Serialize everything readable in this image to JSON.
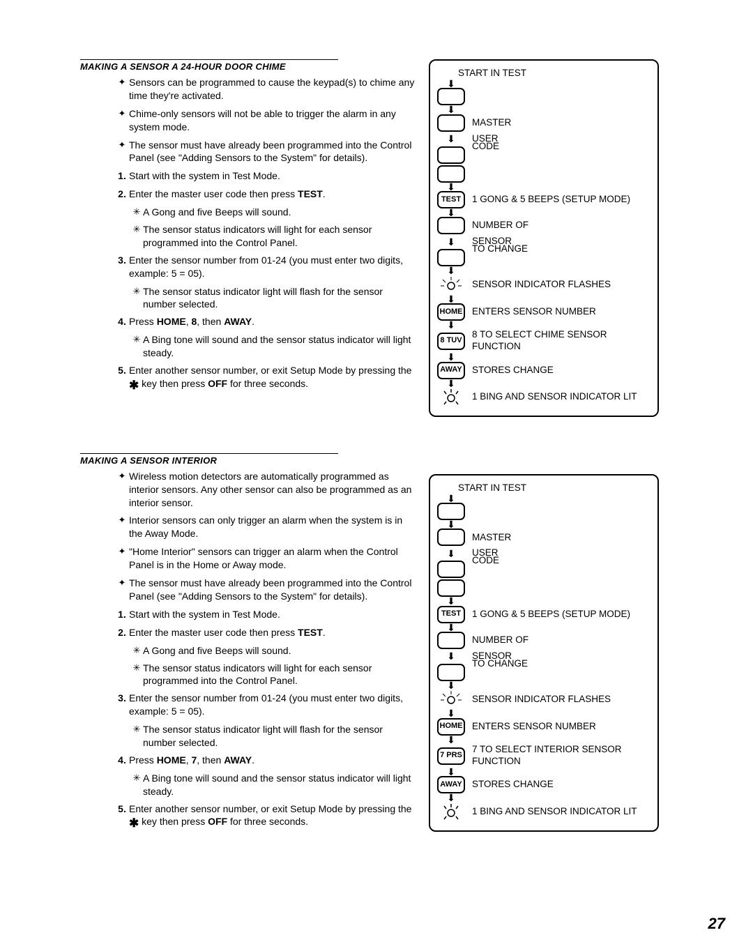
{
  "page_number": "27",
  "sections": [
    {
      "heading": "MAKING A SENSOR A 24-HOUR DOOR CHIME",
      "bullets": [
        "Sensors can be programmed to cause the keypad(s) to chime any time they're activated.",
        "Chime-only sensors will not be able to trigger the alarm in any system mode.",
        "The sensor must have already been programmed into the Control Panel (see \"Adding Sensors to the System\" for details)."
      ],
      "steps": [
        {
          "n": "1.",
          "text": "Start with the system in Test Mode."
        },
        {
          "n": "2.",
          "text_parts": [
            "Enter the master user code then press ",
            "TEST",
            "."
          ],
          "subs": [
            "A Gong and ﬁve Beeps will sound.",
            "The sensor status indicators will light for each sensor programmed into the Control Panel."
          ]
        },
        {
          "n": "3.",
          "text": "Enter the sensor number from 01-24 (you must enter two digits, example: 5 = 05).",
          "subs": [
            "The sensor status indicator light will ﬂash for the sensor number selected."
          ]
        },
        {
          "n": "4.",
          "text_parts": [
            "Press ",
            "HOME",
            ", ",
            "8",
            ", then ",
            "AWAY",
            "."
          ],
          "subs": [
            "A Bing tone will sound and the sensor status indicator will light steady."
          ]
        },
        {
          "n": "5.",
          "text_parts_mixed": [
            "Enter another sensor number, or exit Setup Mode by pressing the ",
            "STAR",
            " key then press ",
            "OFF",
            " for three seconds."
          ]
        }
      ],
      "flow": {
        "title": "START IN TEST",
        "steps": [
          {
            "type": "pill",
            "label": ""
          },
          {
            "type": "arrow"
          },
          {
            "type": "pill_label",
            "pill": "",
            "label": "MASTER"
          },
          {
            "type": "pill_label_arrowpill",
            "label": "USER"
          },
          {
            "type": "contlabel",
            "label": "CODE"
          },
          {
            "type": "pill",
            "label": ""
          },
          {
            "type": "arrow"
          },
          {
            "type": "pill_label",
            "pill": "TEST",
            "label": "1 GONG & 5 BEEPS (SETUP MODE)"
          },
          {
            "type": "arrow"
          },
          {
            "type": "pill_label",
            "pill": "",
            "label": "NUMBER OF"
          },
          {
            "type": "pill_label_arrowpill",
            "label": "SENSOR"
          },
          {
            "type": "contlabel2",
            "label": "TO CHANGE"
          },
          {
            "type": "arrow"
          },
          {
            "type": "sensor_flash",
            "label": "SENSOR INDICATOR FLASHES"
          },
          {
            "type": "arrow"
          },
          {
            "type": "pill_label",
            "pill": "HOME",
            "label": "ENTERS SENSOR NUMBER"
          },
          {
            "type": "arrow"
          },
          {
            "type": "pill_label",
            "pill": "8 TUV",
            "label": "8 TO SELECT CHIME SENSOR FUNCTION"
          },
          {
            "type": "arrow"
          },
          {
            "type": "pill_label",
            "pill": "AWAY",
            "label": "STORES CHANGE"
          },
          {
            "type": "arrow"
          },
          {
            "type": "sensor_lit",
            "label": "1 BING AND SENSOR INDICATOR LIT"
          }
        ]
      }
    },
    {
      "heading": "MAKING A SENSOR INTERIOR",
      "bullets": [
        "Wireless motion detectors are automatically programmed as interior sensors. Any other sensor can also be programmed as an interior sensor.",
        "Interior sensors can only trigger an alarm when the system is in the Away Mode.",
        "\"Home Interior\" sensors can trigger an alarm when the Control Panel is in the Home or Away mode.",
        "The sensor must have already been programmed into the Control Panel (see \"Adding Sensors to the System\" for details)."
      ],
      "steps": [
        {
          "n": "1.",
          "text": "Start with the system in Test Mode."
        },
        {
          "n": "2.",
          "text_parts": [
            "Enter the master user code then press ",
            "TEST",
            "."
          ],
          "subs": [
            "A Gong and ﬁve Beeps will sound.",
            "The sensor status indicators will light for each sensor programmed into the Control Panel."
          ]
        },
        {
          "n": "3.",
          "text": "Enter the sensor number from 01-24 (you must enter two digits, example: 5 = 05).",
          "subs": [
            "The sensor status indicator light will ﬂash for the sensor number selected."
          ]
        },
        {
          "n": "4.",
          "text_parts": [
            "Press ",
            "HOME",
            ", ",
            "7",
            ", then ",
            "AWAY",
            "."
          ],
          "subs": [
            "A Bing tone will sound and the sensor status indicator will light steady."
          ]
        },
        {
          "n": "5.",
          "text_parts_mixed": [
            "Enter another sensor number, or exit Setup Mode by pressing the ",
            "STAR",
            " key then press ",
            "OFF",
            " for three seconds."
          ]
        }
      ],
      "flow": {
        "title": "START IN TEST",
        "steps": [
          {
            "type": "pill",
            "label": ""
          },
          {
            "type": "arrow"
          },
          {
            "type": "pill_label",
            "pill": "",
            "label": "MASTER"
          },
          {
            "type": "pill_label_arrowpill",
            "label": "USER"
          },
          {
            "type": "contlabel",
            "label": "CODE"
          },
          {
            "type": "pill",
            "label": ""
          },
          {
            "type": "arrow"
          },
          {
            "type": "pill_label",
            "pill": "TEST",
            "label": "1 GONG & 5 BEEPS (SETUP MODE)"
          },
          {
            "type": "arrow"
          },
          {
            "type": "pill_label",
            "pill": "",
            "label": "NUMBER OF"
          },
          {
            "type": "pill_label_arrowpill",
            "label": "SENSOR"
          },
          {
            "type": "contlabel2",
            "label": "TO CHANGE"
          },
          {
            "type": "arrow"
          },
          {
            "type": "sensor_flash",
            "label": "SENSOR INDICATOR FLASHES"
          },
          {
            "type": "arrow"
          },
          {
            "type": "pill_label",
            "pill": "HOME",
            "label": "ENTERS SENSOR NUMBER"
          },
          {
            "type": "arrow"
          },
          {
            "type": "pill_label",
            "pill": "7 PRS",
            "label": "7 TO SELECT INTERIOR SENSOR FUNCTION"
          },
          {
            "type": "arrow"
          },
          {
            "type": "pill_label",
            "pill": "AWAY",
            "label": "STORES CHANGE"
          },
          {
            "type": "arrow"
          },
          {
            "type": "sensor_lit",
            "label": "1 BING AND SENSOR INDICATOR LIT"
          }
        ]
      }
    }
  ]
}
